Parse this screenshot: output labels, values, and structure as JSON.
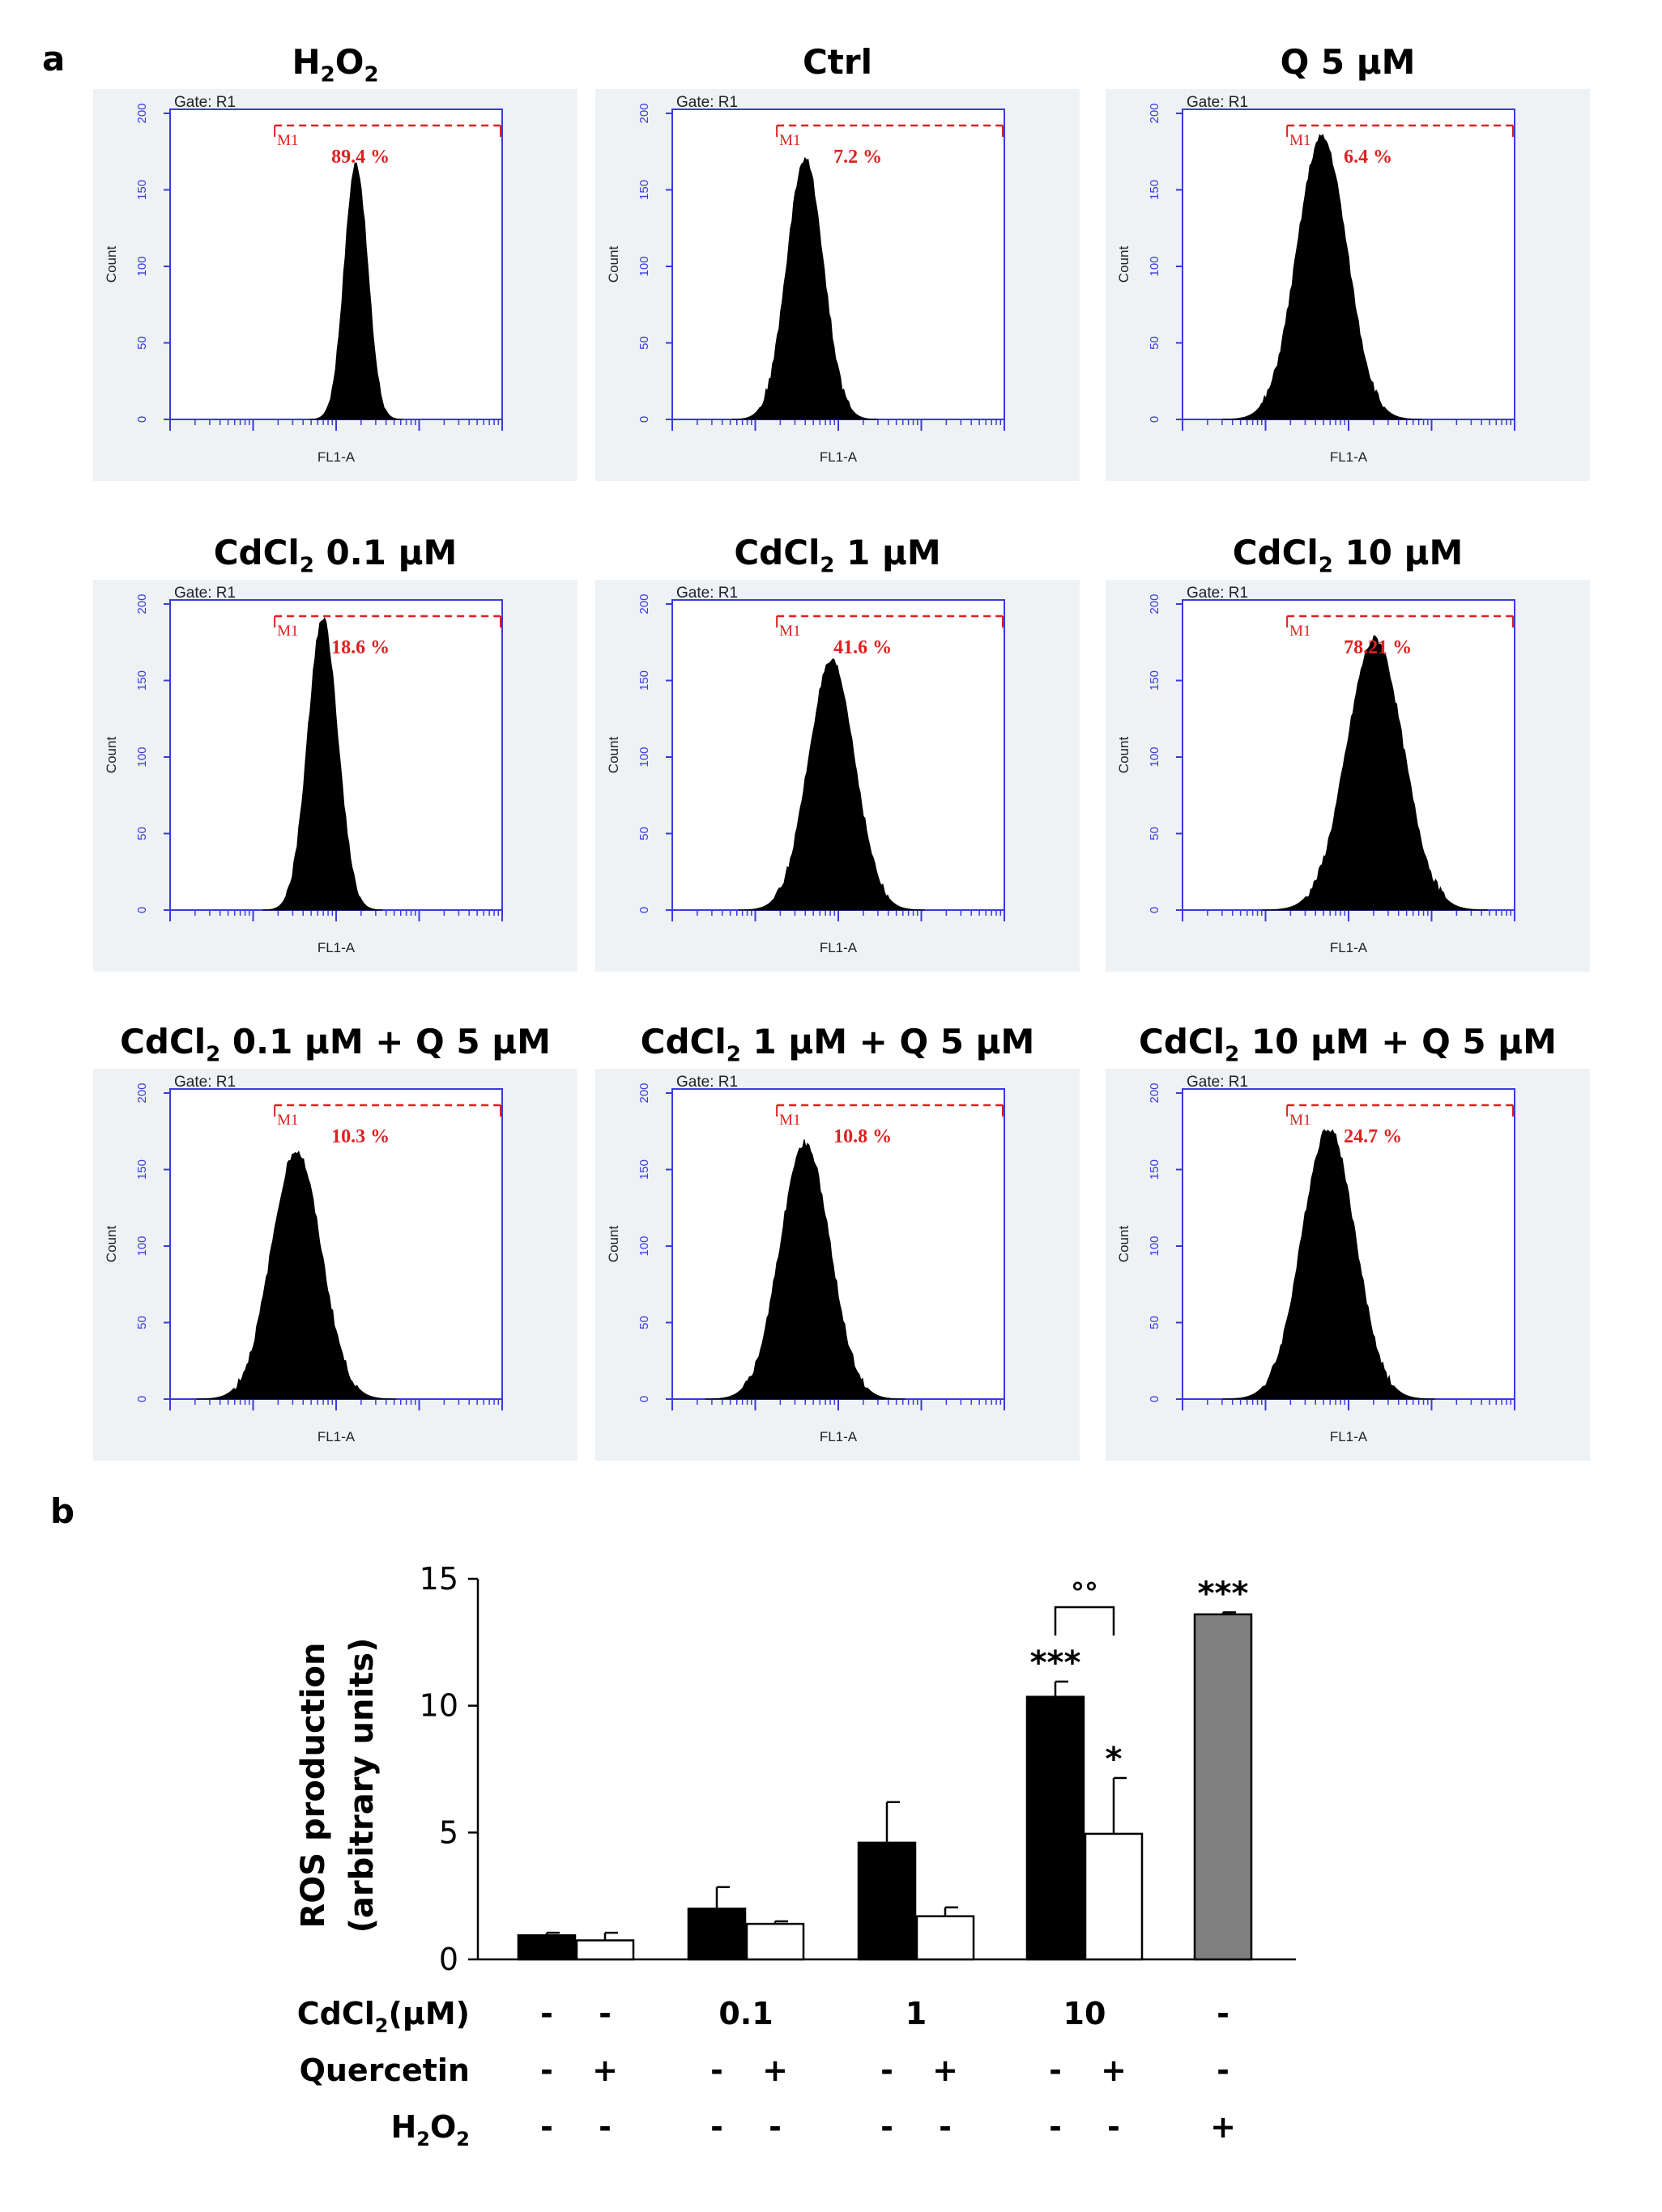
{
  "panel_a_letter": "a",
  "panel_b_letter": "b",
  "histogram_common": {
    "gate_label": "Gate: R1",
    "marker_label": "M1",
    "y_axis_label": "Count",
    "x_axis_label": "FL1-A",
    "y_ticks": [
      "0",
      "50",
      "100",
      "150",
      "200"
    ],
    "colors": {
      "axis": "#3a3ae0",
      "marker": "#e02020",
      "fill": "#000000",
      "panel_bg": "#eef2f5"
    }
  },
  "histograms": [
    {
      "title_main": "H",
      "title_sub": "2",
      "title_mid": "O",
      "title_sub2": "2",
      "title_rest": "",
      "percent": "89.4 %",
      "peak_pos": 0.56,
      "peak_height": 165,
      "width": 0.035
    },
    {
      "title_main": "Ctrl",
      "title_sub": "",
      "title_mid": "",
      "title_sub2": "",
      "title_rest": "",
      "percent": "7.2 %",
      "peak_pos": 0.4,
      "peak_height": 168,
      "width": 0.055
    },
    {
      "title_main": "Q 5 µM",
      "title_sub": "",
      "title_mid": "",
      "title_sub2": "",
      "title_rest": "",
      "percent": "6.4 %",
      "peak_pos": 0.42,
      "peak_height": 182,
      "width": 0.075
    },
    {
      "title_main": "CdCl",
      "title_sub": "2",
      "title_mid": " 0.1 µM",
      "title_sub2": "",
      "title_rest": "",
      "percent": "18.6 %",
      "peak_pos": 0.46,
      "peak_height": 188,
      "width": 0.045
    },
    {
      "title_main": "CdCl",
      "title_sub": "2",
      "title_mid": " 1 µM",
      "title_sub2": "",
      "title_rest": "",
      "percent": "41.6 %",
      "peak_pos": 0.48,
      "peak_height": 160,
      "width": 0.07
    },
    {
      "title_main": "CdCl",
      "title_sub": "2",
      "title_mid": " 10 µM",
      "title_sub2": "",
      "title_rest": "",
      "percent": "78.21 %",
      "peak_pos": 0.58,
      "peak_height": 175,
      "width": 0.085
    },
    {
      "title_main": "CdCl",
      "title_sub": "2",
      "title_mid": " 0.1 µM + Q 5 µM",
      "title_sub2": "",
      "title_rest": "",
      "percent": "10.3 %",
      "peak_pos": 0.38,
      "peak_height": 160,
      "width": 0.075
    },
    {
      "title_main": "CdCl",
      "title_sub": "2",
      "title_mid": " 1 µM + Q 5 µM",
      "title_sub2": "",
      "title_rest": "",
      "percent": "10.8 %",
      "peak_pos": 0.4,
      "peak_height": 165,
      "width": 0.075
    },
    {
      "title_main": "CdCl",
      "title_sub": "2",
      "title_mid": " 10 µM + Q 5 µM",
      "title_sub2": "",
      "title_rest": "",
      "percent": "24.7 %",
      "peak_pos": 0.44,
      "peak_height": 175,
      "width": 0.08
    }
  ],
  "chart_data": {
    "type": "bar",
    "title": "",
    "ylabel_line1": "ROS production",
    "ylabel_line2": "(arbitrary  units)",
    "ylim": [
      0,
      15
    ],
    "yticks": [
      0,
      5,
      10,
      15
    ],
    "bars": [
      {
        "group": 0,
        "treatment": "CdCl2",
        "value": 0.95,
        "error": 0.1,
        "color": "#000000",
        "sig": ""
      },
      {
        "group": 0,
        "treatment": "CdCl2+Q",
        "value": 0.75,
        "error": 0.3,
        "color": "#ffffff",
        "sig": ""
      },
      {
        "group": 1,
        "treatment": "CdCl2",
        "value": 2.0,
        "error": 0.85,
        "color": "#000000",
        "sig": ""
      },
      {
        "group": 1,
        "treatment": "CdCl2+Q",
        "value": 1.4,
        "error": 0.1,
        "color": "#ffffff",
        "sig": ""
      },
      {
        "group": 2,
        "treatment": "CdCl2",
        "value": 4.6,
        "error": 1.6,
        "color": "#000000",
        "sig": ""
      },
      {
        "group": 2,
        "treatment": "CdCl2+Q",
        "value": 1.7,
        "error": 0.35,
        "color": "#ffffff",
        "sig": ""
      },
      {
        "group": 3,
        "treatment": "CdCl2",
        "value": 10.35,
        "error": 0.6,
        "color": "#000000",
        "sig": "***"
      },
      {
        "group": 3,
        "treatment": "CdCl2+Q",
        "value": 4.95,
        "error": 2.2,
        "color": "#ffffff",
        "sig": "*"
      },
      {
        "group": 4,
        "treatment": "H2O2",
        "value": 13.6,
        "error": 0.08,
        "color": "#808080",
        "sig": "***"
      }
    ],
    "comparison_bracket": {
      "between_bars": [
        6,
        7
      ],
      "label": "°°"
    },
    "row_labels": [
      {
        "main": "CdCl",
        "sub": "2",
        "rest": "(µM)"
      },
      {
        "main": "Quercetin",
        "sub": "",
        "rest": ""
      },
      {
        "main": "H",
        "sub": "2",
        "rest": "O",
        "sub2": "2"
      }
    ],
    "row_values": [
      [
        "-",
        "-",
        "0.1",
        "1",
        "10",
        "-"
      ],
      [
        "-",
        "+",
        "-",
        "+",
        "-",
        "+",
        "-",
        "+",
        "-"
      ],
      [
        "-",
        "-",
        "-",
        "-",
        "-",
        "-",
        "-",
        "-",
        "+"
      ]
    ]
  }
}
